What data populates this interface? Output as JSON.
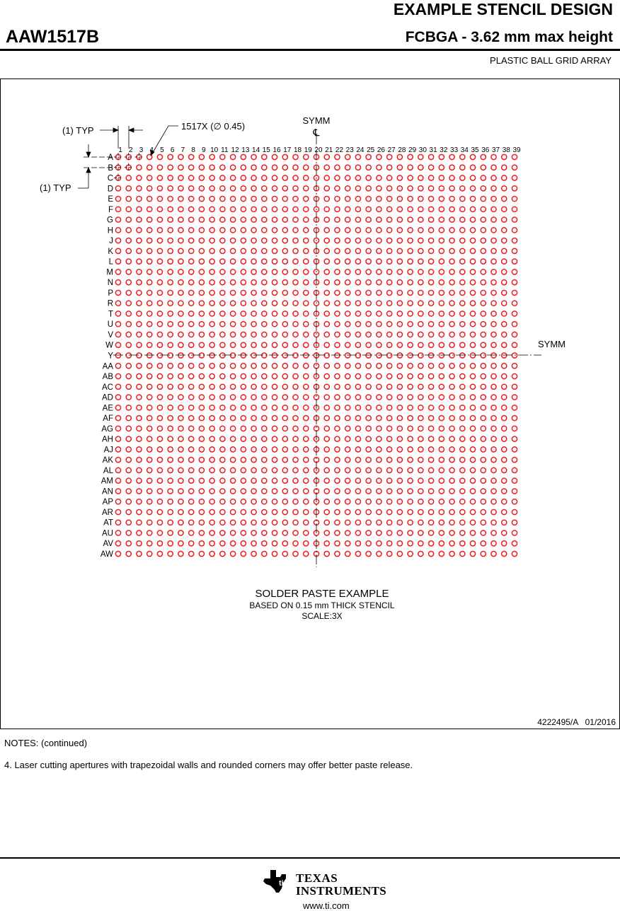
{
  "header": {
    "title": "EXAMPLE STENCIL DESIGN",
    "part_number": "AAW1517B",
    "package": "FCBGA - 3.62 mm max height",
    "package_type": "PLASTIC BALL GRID ARRAY"
  },
  "drawing": {
    "typ_horizontal": "(1) TYP",
    "typ_vertical": "(1) TYP",
    "ball_callout": "1517X (∅ 0.45)",
    "symm_top": "SYMM",
    "centerline_symbol": "℄",
    "symm_right": "SYMM",
    "columns": [
      "1",
      "2",
      "3",
      "4",
      "5",
      "6",
      "7",
      "8",
      "9",
      "10",
      "11",
      "12",
      "13",
      "14",
      "15",
      "16",
      "17",
      "18",
      "19",
      "20",
      "21",
      "22",
      "23",
      "24",
      "25",
      "26",
      "27",
      "28",
      "29",
      "30",
      "31",
      "32",
      "33",
      "34",
      "35",
      "36",
      "37",
      "38",
      "39"
    ],
    "rows": [
      "A",
      "B",
      "C",
      "D",
      "E",
      "F",
      "G",
      "H",
      "J",
      "K",
      "L",
      "M",
      "N",
      "P",
      "R",
      "T",
      "U",
      "V",
      "W",
      "Y",
      "AA",
      "AB",
      "AC",
      "AD",
      "AE",
      "AF",
      "AG",
      "AH",
      "AJ",
      "AK",
      "AL",
      "AM",
      "AN",
      "AP",
      "AR",
      "AT",
      "AU",
      "AV",
      "AW"
    ],
    "aperture_color": "#ee1c1c",
    "caption_title": "SOLDER PASTE EXAMPLE",
    "caption_subtitle": "BASED ON 0.15 mm THICK STENCIL",
    "caption_scale": "SCALE:3X",
    "drawing_number": "4222495/A   01/2016"
  },
  "notes": {
    "heading": "NOTES: (continued)",
    "items": [
      "4. Laser cutting apertures with trapezoidal walls and rounded corners may offer better paste release."
    ]
  },
  "footer": {
    "logo_text_1": "TEXAS",
    "logo_text_2": "INSTRUMENTS",
    "url": "www.ti.com"
  }
}
